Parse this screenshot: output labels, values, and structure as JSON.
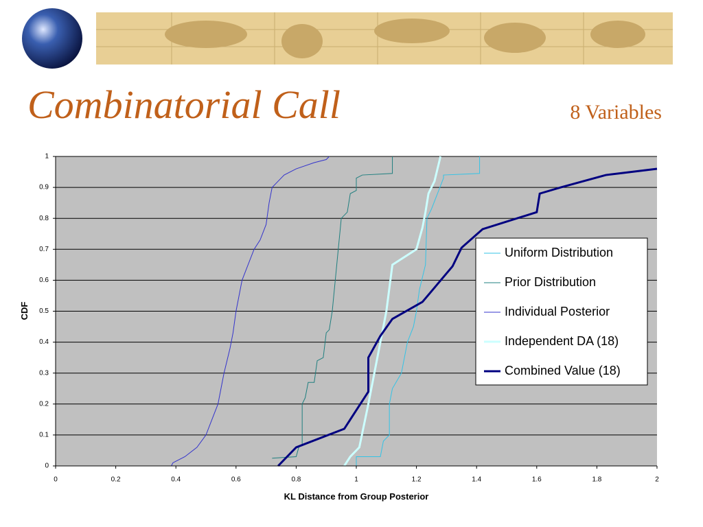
{
  "chart_data": {
    "type": "line",
    "title": "Combinatorial Call",
    "subtitle": "8 Variables",
    "xlabel": "KL Distance from Group Posterior",
    "ylabel": "CDF",
    "xlim": [
      0,
      2
    ],
    "ylim": [
      0,
      1
    ],
    "xticks": [
      0,
      0.2,
      0.4,
      0.6,
      0.8,
      1,
      1.2,
      1.4,
      1.6,
      1.8,
      2
    ],
    "yticks": [
      0,
      0.1,
      0.2,
      0.3,
      0.4,
      0.5,
      0.6,
      0.7,
      0.8,
      0.9,
      1
    ],
    "grid": true,
    "legend": "right",
    "series": [
      {
        "name": "Uniform Distribution",
        "color": "#33c3e6",
        "width": 1,
        "x": [
          1.0,
          1.0,
          1.08,
          1.09,
          1.11,
          1.11,
          1.12,
          1.15,
          1.17,
          1.19,
          1.2,
          1.21,
          1.23,
          1.235,
          1.25,
          1.27,
          1.29,
          1.29,
          1.41,
          1.41
        ],
        "values": [
          0.0,
          0.03,
          0.03,
          0.08,
          0.1,
          0.2,
          0.25,
          0.3,
          0.4,
          0.45,
          0.5,
          0.57,
          0.65,
          0.8,
          0.83,
          0.88,
          0.93,
          0.94,
          0.945,
          1.0
        ]
      },
      {
        "name": "Prior Distribution",
        "color": "#1f7f7f",
        "width": 1,
        "x": [
          0.72,
          0.8,
          0.81,
          0.82,
          0.82,
          0.83,
          0.84,
          0.86,
          0.87,
          0.89,
          0.9,
          0.91,
          0.92,
          0.93,
          0.94,
          0.95,
          0.97,
          0.98,
          1.0,
          1.0,
          1.02,
          1.12,
          1.12
        ],
        "values": [
          0.025,
          0.03,
          0.065,
          0.065,
          0.2,
          0.22,
          0.27,
          0.27,
          0.34,
          0.35,
          0.43,
          0.44,
          0.5,
          0.6,
          0.7,
          0.8,
          0.82,
          0.88,
          0.89,
          0.93,
          0.94,
          0.945,
          1.0
        ]
      },
      {
        "name": "Individual Posterior",
        "color": "#3333cc",
        "width": 1,
        "x": [
          0.385,
          0.39,
          0.43,
          0.47,
          0.5,
          0.52,
          0.54,
          0.55,
          0.56,
          0.58,
          0.59,
          0.6,
          0.62,
          0.64,
          0.66,
          0.68,
          0.7,
          0.71,
          0.72,
          0.74,
          0.76,
          0.8,
          0.86,
          0.9,
          0.91
        ],
        "values": [
          0.0,
          0.01,
          0.03,
          0.06,
          0.1,
          0.15,
          0.2,
          0.25,
          0.3,
          0.38,
          0.43,
          0.5,
          0.6,
          0.65,
          0.7,
          0.73,
          0.78,
          0.85,
          0.9,
          0.92,
          0.94,
          0.96,
          0.98,
          0.99,
          1.0
        ]
      },
      {
        "name": "Independent DA  (18)",
        "color": "#ccffff",
        "width": 3,
        "x": [
          0.96,
          0.98,
          1.01,
          1.04,
          1.06,
          1.08,
          1.1,
          1.12,
          1.2,
          1.22,
          1.23,
          1.24,
          1.26,
          1.28
        ],
        "values": [
          0.0,
          0.03,
          0.06,
          0.2,
          0.3,
          0.4,
          0.5,
          0.65,
          0.7,
          0.77,
          0.82,
          0.88,
          0.92,
          1.0
        ]
      },
      {
        "name": "Combined Value (18)",
        "color": "#000080",
        "width": 3,
        "x": [
          0.74,
          0.8,
          0.96,
          1.0,
          1.04,
          1.04,
          1.08,
          1.12,
          1.22,
          1.32,
          1.35,
          1.42,
          1.6,
          1.61,
          1.68,
          1.83,
          2.0
        ],
        "values": [
          0.0,
          0.06,
          0.12,
          0.18,
          0.24,
          0.35,
          0.42,
          0.475,
          0.53,
          0.645,
          0.705,
          0.765,
          0.82,
          0.88,
          0.9,
          0.94,
          0.96
        ]
      }
    ]
  }
}
